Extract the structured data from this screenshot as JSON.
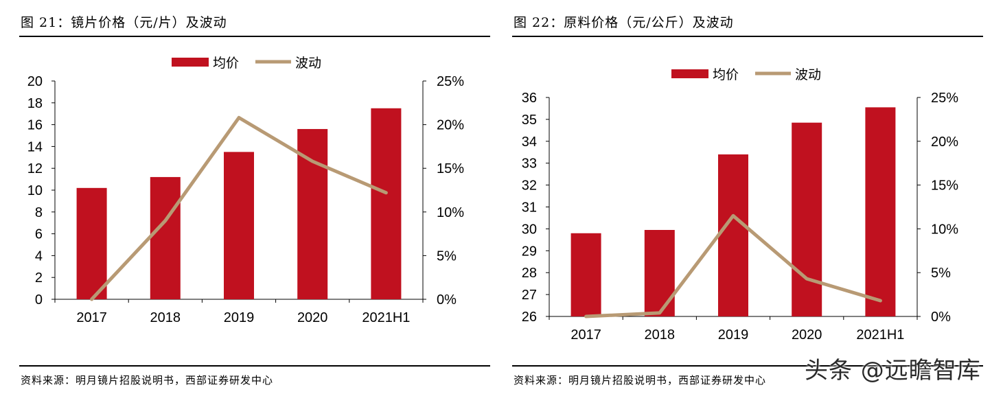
{
  "colors": {
    "bar": "#c0111f",
    "line": "#b89a74",
    "text": "#000000"
  },
  "panels": [
    {
      "title": "图 21：镜片价格（元/片）及波动",
      "source": "资料来源：明月镜片招股说明书，西部证券研发中心"
    },
    {
      "title": "图 22：原料价格（元/公斤）及波动",
      "source": "资料来源：明月镜片招股说明书，西部证券研发中心"
    }
  ],
  "watermark": "头条 @远瞻智库",
  "chart_data": [
    {
      "type": "bar",
      "categories": [
        "2017",
        "2018",
        "2019",
        "2020",
        "2021H1"
      ],
      "series": [
        {
          "name": "均价",
          "type": "bar",
          "axis": "left",
          "values": [
            10.2,
            11.2,
            13.5,
            15.6,
            17.5
          ]
        },
        {
          "name": "波动",
          "type": "line",
          "axis": "right",
          "values": [
            0.0,
            9.0,
            20.8,
            15.8,
            12.2
          ]
        }
      ],
      "left_axis": {
        "ylim": [
          0,
          20
        ],
        "ticks": [
          "0",
          "2",
          "4",
          "6",
          "8",
          "10",
          "12",
          "14",
          "16",
          "18",
          "20"
        ]
      },
      "right_axis": {
        "ylim": [
          0,
          25
        ],
        "unit": "%",
        "ticks": [
          "0%",
          "5%",
          "10%",
          "15%",
          "20%",
          "25%"
        ]
      },
      "legend": "top",
      "grid": false
    },
    {
      "type": "bar",
      "categories": [
        "2017",
        "2018",
        "2019",
        "2020",
        "2021H1"
      ],
      "series": [
        {
          "name": "均价",
          "type": "bar",
          "axis": "left",
          "values": [
            29.8,
            29.95,
            33.4,
            34.85,
            35.55
          ]
        },
        {
          "name": "波动",
          "type": "line",
          "axis": "right",
          "values": [
            0.0,
            0.4,
            11.5,
            4.3,
            1.8
          ]
        }
      ],
      "left_axis": {
        "ylim": [
          26,
          36
        ],
        "ticks": [
          "26",
          "27",
          "28",
          "29",
          "30",
          "31",
          "32",
          "33",
          "34",
          "35",
          "36"
        ]
      },
      "right_axis": {
        "ylim": [
          0,
          25
        ],
        "unit": "%",
        "ticks": [
          "0%",
          "5%",
          "10%",
          "15%",
          "20%",
          "25%"
        ]
      },
      "legend": "top",
      "grid": false
    }
  ]
}
